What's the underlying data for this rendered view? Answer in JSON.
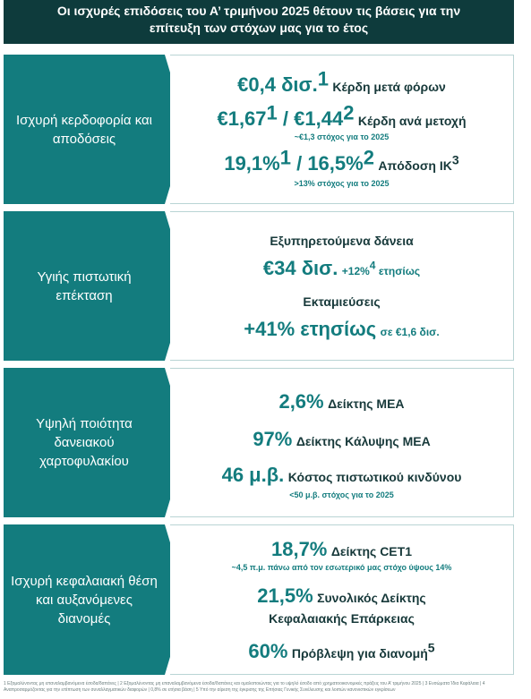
{
  "header": {
    "line1": "Οι ισχυρές επιδόσεις του Α’ τριμήνου 2025 θέτουν τις βάσεις για την",
    "line2": "επίτευξη των στόχων μας για το έτος"
  },
  "sections": [
    {
      "label": "Ισχυρή κερδοφορία και αποδόσεις",
      "l1": {
        "value": "€0,4 δισ.",
        "sup": "1",
        "text": "Κέρδη μετά φόρων"
      },
      "l2": {
        "v1": "€1,67",
        "s1": "1",
        "sep": " / ",
        "v2": "€1,44",
        "s2": "2",
        "text": "Κέρδη ανά μετοχή"
      },
      "l2note": "~€1,3 στόχος για το 2025",
      "l3": {
        "v1": "19,1%",
        "s1": "1",
        "sep": " / ",
        "v2": "16,5%",
        "s2": "2",
        "text": "Απόδοση ΙΚ",
        "s3": "3"
      },
      "l3note": ">13% στόχος για το 2025"
    },
    {
      "label": "Υγιής πιστωτική επέκταση",
      "l1": "Εξυπηρετούμενα δάνεια",
      "l2": {
        "value": "€34 δισ.",
        "text": "+12%",
        "sup": "4",
        "tail": " ετησίως"
      },
      "l3": "Εκταμιεύσεις",
      "l4": {
        "value": "+41% ετησίως",
        "text": "σε €1,6 δισ."
      }
    },
    {
      "label": "Υψηλή ποιότητα δανειακού χαρτοφυλακίου",
      "l1": {
        "value": "2,6%",
        "text": "Δείκτης ΜΕΑ"
      },
      "l2": {
        "value": "97%",
        "text": "Δείκτης Κάλυψης ΜΕΑ"
      },
      "l3": {
        "value": "46 μ.β.",
        "text": "Κόστος πιστωτικού κινδύνου"
      },
      "l3note": "<50 μ.β. στόχος για το 2025"
    },
    {
      "label": "Ισχυρή κεφαλαιακή θέση και αυξανόμενες διανομές",
      "l1": {
        "value": "18,7%",
        "text": "Δείκτης CET1"
      },
      "l1note": "~4,5 π.μ. πάνω από τον εσωτερικό μας στόχο ύψους 14%",
      "l2": {
        "value": "21,5%",
        "text": "Συνολικός Δείκτης"
      },
      "l2b": "Κεφαλαιακής Επάρκειας",
      "l3": {
        "value": "60%",
        "text": "Πρόβλεψη για διανομή",
        "sup": "5"
      }
    }
  ],
  "footer": {
    "line1": "1 Εξομαλύνοντας μη επαναλαμβανόμενα έσοδα/δαπάνες | 2 Εξομαλύνοντας μη επαναλαμβανόμενα έσοδα/δαπάνες και ομαλοποιώντας για το υψηλό έσοδο από χρηματοοικονομικές πράξεις του Α’ τριμήνου 2025 | 3 Ενσώματα Ίδια Κεφάλαια | 4",
    "line2": "Αναπροσαρμόζοντας για την επίπτωση των συναλλαγματικών διαφορών | 0,8% σε ετήσια βάση | 5 Υπό την αίρεση της έγκρισης της Επήσιας Γενικής Συνέλευσης και λοιπών κανονιστικών εγκρίσεων"
  }
}
